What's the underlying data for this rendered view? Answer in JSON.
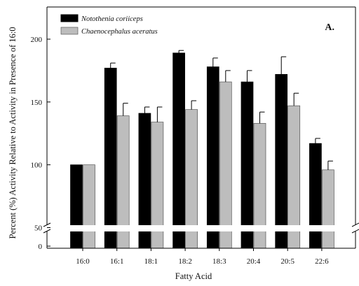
{
  "chart_data": {
    "type": "bar",
    "panel_label": "A.",
    "xlabel": "Fatty Acid",
    "ylabel": "Percent (%) Activity Relative to Activity in Presence of 16:0",
    "categories": [
      "16:0",
      "16:1",
      "18:1",
      "18:2",
      "18:3",
      "20:4",
      "20:5",
      "22:6"
    ],
    "y_ticks": [
      "50",
      "100",
      "150",
      "200"
    ],
    "ylim": [
      50,
      225
    ],
    "axis_break": "between 0 and 50",
    "y_zero_label": "0",
    "grid": false,
    "legend_position": "top-left",
    "series": [
      {
        "name": "Notothenia coriiceps",
        "color": "#000000",
        "values": [
          100,
          177,
          141,
          189,
          178,
          166,
          172,
          117
        ],
        "errors": [
          0,
          4,
          5,
          2,
          7,
          9,
          14,
          4
        ]
      },
      {
        "name": "Chaenocephalus aceratus",
        "color": "#bdbdbd",
        "values": [
          100,
          139,
          134,
          144,
          166,
          133,
          147,
          96
        ],
        "errors": [
          0,
          10,
          12,
          7,
          9,
          9,
          10,
          7
        ]
      }
    ]
  }
}
